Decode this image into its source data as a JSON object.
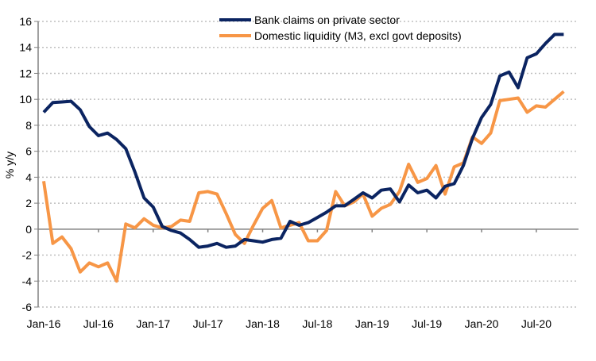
{
  "chart_data": {
    "type": "line",
    "title": "",
    "xlabel": "",
    "ylabel": "% y/y",
    "ylim": [
      -6,
      16
    ],
    "yticks": [
      -6,
      -4,
      -2,
      0,
      2,
      4,
      6,
      8,
      10,
      12,
      14,
      16
    ],
    "xtick_labels": [
      "Jan-16",
      "Jul-16",
      "Jan-17",
      "Jul-17",
      "Jan-18",
      "Jul-18",
      "Jan-19",
      "Jul-19",
      "Jan-20",
      "Jul-20"
    ],
    "x_start": "Jan-16",
    "x_end": "Oct-20",
    "grid": "horizontal dotted",
    "legend_position": "top",
    "series": [
      {
        "name": "Bank claims on private sector",
        "color": "#0b2461",
        "values": [
          9.0,
          9.75,
          9.8,
          9.85,
          9.2,
          7.9,
          7.2,
          7.4,
          6.9,
          6.2,
          4.4,
          2.4,
          1.7,
          0.2,
          -0.1,
          -0.3,
          -0.8,
          -1.4,
          -1.3,
          -1.1,
          -1.4,
          -1.3,
          -0.8,
          -0.9,
          -1.0,
          -0.8,
          -0.7,
          0.6,
          0.3,
          0.5,
          0.9,
          1.3,
          1.8,
          1.8,
          2.3,
          2.8,
          2.4,
          3.0,
          3.1,
          2.1,
          3.4,
          2.8,
          3.0,
          2.4,
          3.3,
          3.5,
          4.9,
          7.0,
          8.6,
          9.6,
          11.8,
          12.1,
          10.9,
          13.2,
          13.5,
          14.3,
          15.0,
          15.0
        ]
      },
      {
        "name": "Domestic liquidity (M3, excl govt deposits)",
        "color": "#f79646",
        "values": [
          3.7,
          -1.1,
          -0.6,
          -1.5,
          -3.3,
          -2.6,
          -2.9,
          -2.6,
          -4.0,
          0.4,
          0.1,
          0.8,
          0.3,
          0.1,
          0.2,
          0.7,
          0.6,
          2.8,
          2.9,
          2.7,
          1.2,
          -0.4,
          -1.1,
          0.3,
          1.6,
          2.2,
          0.1,
          0.3,
          0.5,
          -0.9,
          -0.9,
          -0.1,
          2.9,
          1.8,
          2.1,
          2.7,
          1.0,
          1.6,
          1.9,
          2.9,
          5.0,
          3.6,
          3.9,
          4.9,
          2.7,
          4.8,
          5.1,
          7.1,
          6.6,
          7.4,
          9.9,
          10.0,
          10.1,
          9.0,
          9.5,
          9.4,
          10.0,
          10.6
        ]
      }
    ]
  }
}
